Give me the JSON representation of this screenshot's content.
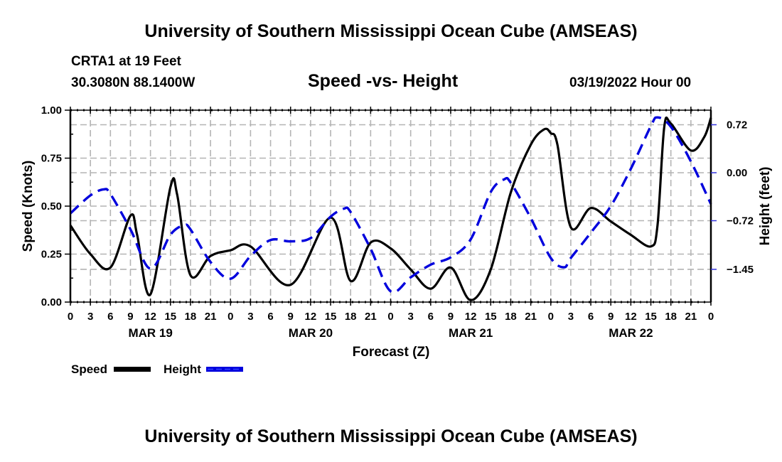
{
  "header": {
    "main_title": "University of Southern Mississippi Ocean Cube (AMSEAS)",
    "station": "CRTA1 at 19 Feet",
    "coords": "30.3080N  88.1400W",
    "plot_title": "Speed -vs- Height",
    "datetime": "03/19/2022 Hour 00"
  },
  "footer": {
    "repeated_title": "University of Southern Mississippi Ocean Cube (AMSEAS)"
  },
  "chart_data": {
    "type": "line",
    "title": "Speed -vs- Height",
    "xlabel": "Forecast (Z)",
    "ylabel": "Speed (Knots)",
    "y2label": "Height (feet)",
    "xlim": [
      0,
      96
    ],
    "ylim": [
      0,
      1.0
    ],
    "y2lim": [
      -1.9,
      0.96
    ],
    "grid": true,
    "x_tick_hours": [
      0,
      3,
      6,
      9,
      12,
      15,
      18,
      21,
      24,
      27,
      30,
      33,
      36,
      39,
      42,
      45,
      48,
      51,
      54,
      57,
      60,
      63,
      66,
      69,
      72,
      75,
      78,
      81,
      84,
      87,
      90,
      93,
      96
    ],
    "x_tick_labels": [
      "0",
      "3",
      "6",
      "9",
      "12",
      "15",
      "18",
      "21",
      "0",
      "3",
      "6",
      "9",
      "12",
      "15",
      "18",
      "21",
      "0",
      "3",
      "6",
      "9",
      "12",
      "15",
      "18",
      "21",
      "0",
      "3",
      "6",
      "9",
      "12",
      "15",
      "18",
      "21",
      "0"
    ],
    "date_labels": [
      {
        "hour": 12,
        "label": "MAR 19"
      },
      {
        "hour": 36,
        "label": "MAR 20"
      },
      {
        "hour": 60,
        "label": "MAR 21"
      },
      {
        "hour": 84,
        "label": "MAR 22"
      }
    ],
    "y_ticks": [
      0.0,
      0.25,
      0.5,
      0.75,
      1.0
    ],
    "y_tick_labels": [
      "0.00",
      "0.25",
      "0.50",
      "0.75",
      "1.00"
    ],
    "y2_ticks": [
      0.72,
      0.0,
      -0.72,
      -1.45
    ],
    "y2_tick_labels": [
      "0.72",
      "0.00",
      "−0.72",
      "−1.45"
    ],
    "legend_position": "bottom-left",
    "series": [
      {
        "name": "Speed",
        "axis": "left",
        "color": "#000000",
        "style": "solid",
        "x": [
          0,
          3,
          6,
          9,
          10,
          12,
          15,
          16,
          18,
          21,
          24,
          27,
          33,
          39,
          42,
          45,
          48,
          51,
          54,
          57,
          60,
          63,
          66,
          69,
          71,
          72,
          73,
          75,
          78,
          81,
          84,
          87,
          88,
          89,
          90,
          93,
          95,
          96
        ],
        "values": [
          0.4,
          0.25,
          0.18,
          0.45,
          0.35,
          0.04,
          0.6,
          0.56,
          0.14,
          0.24,
          0.27,
          0.29,
          0.09,
          0.44,
          0.11,
          0.31,
          0.28,
          0.17,
          0.07,
          0.18,
          0.01,
          0.17,
          0.57,
          0.82,
          0.9,
          0.88,
          0.82,
          0.39,
          0.49,
          0.42,
          0.35,
          0.29,
          0.4,
          0.91,
          0.93,
          0.79,
          0.86,
          0.96
        ]
      },
      {
        "name": "Height",
        "axis": "right",
        "color": "#0000dd",
        "style": "dashed",
        "x": [
          0,
          3,
          5,
          6,
          9,
          12,
          15,
          17,
          18,
          21,
          24,
          27,
          30,
          33,
          36,
          39,
          41,
          42,
          45,
          48,
          51,
          54,
          57,
          60,
          63,
          65,
          66,
          69,
          72,
          74,
          75,
          78,
          81,
          84,
          87,
          88,
          90,
          93,
          96
        ],
        "values": [
          -0.61,
          -0.34,
          -0.25,
          -0.32,
          -0.85,
          -1.44,
          -0.93,
          -0.79,
          -0.85,
          -1.34,
          -1.59,
          -1.25,
          -1.01,
          -1.03,
          -0.98,
          -0.66,
          -0.54,
          -0.59,
          -1.14,
          -1.78,
          -1.57,
          -1.38,
          -1.27,
          -1.0,
          -0.29,
          -0.1,
          -0.15,
          -0.68,
          -1.28,
          -1.42,
          -1.28,
          -0.9,
          -0.5,
          0.06,
          0.7,
          0.83,
          0.69,
          0.17,
          -0.47
        ]
      }
    ]
  }
}
